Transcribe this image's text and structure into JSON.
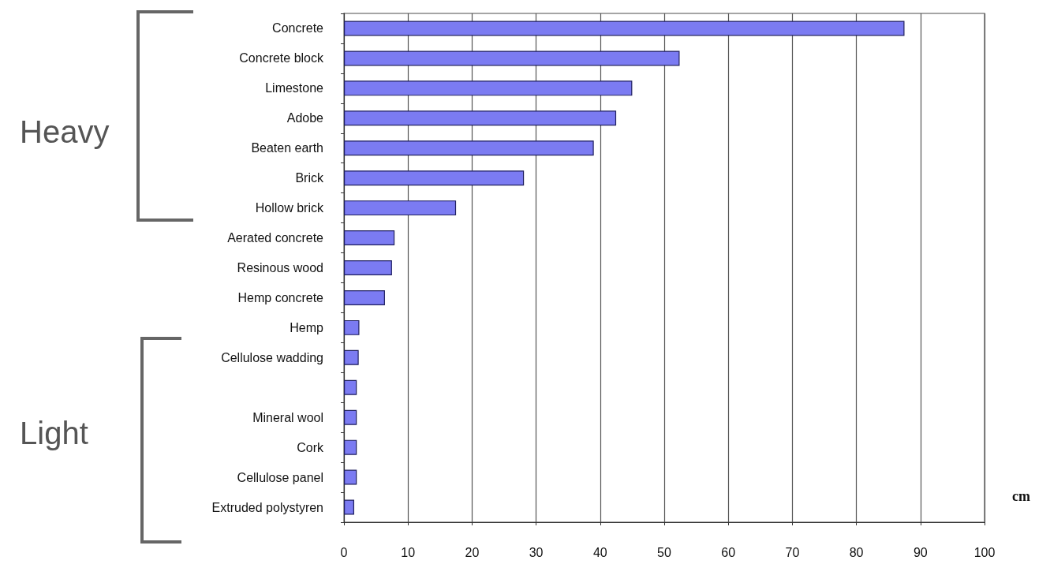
{
  "chart_data": {
    "type": "bar",
    "orientation": "horizontal",
    "xlabel": "cm",
    "categories": [
      "Concrete",
      "Concrete block",
      "Limestone",
      "Adobe",
      "Beaten earth",
      "Brick",
      "Hollow brick",
      "Aerated concrete",
      "Resinous wood",
      "Hemp concrete",
      "Hemp",
      "Cellulose wadding",
      null,
      "Mineral wool",
      "Cork",
      "Cellulose panel",
      "Extruded polystyren"
    ],
    "values": [
      87.5,
      52.4,
      45.0,
      42.5,
      39.0,
      28.1,
      17.5,
      7.9,
      7.5,
      6.4,
      2.4,
      2.3,
      2.0,
      2.0,
      2.0,
      2.0,
      1.6
    ],
    "color": "#7b7bf2",
    "xlim": [
      0,
      100
    ],
    "xticks": [
      0,
      10,
      20,
      30,
      40,
      50,
      60,
      70,
      80,
      90,
      100
    ],
    "grid": "x",
    "annotations": [
      "Heavy",
      "Light"
    ]
  }
}
